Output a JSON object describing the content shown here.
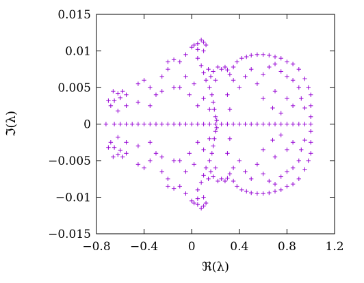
{
  "chart_data": {
    "type": "scatter",
    "marker": "+",
    "color": "#9400d3",
    "xlabel": "ℜ(λ)",
    "ylabel": "ℑ(λ)",
    "xlim": [
      -0.8,
      1.2
    ],
    "ylim": [
      -0.015,
      0.015
    ],
    "xticks": [
      -0.8,
      -0.4,
      0,
      0.4,
      0.8,
      1.2
    ],
    "xtick_labels": [
      "−0.8",
      "−0.4",
      "0",
      "0.4",
      "0.8",
      "1.2"
    ],
    "yticks": [
      -0.015,
      -0.01,
      -0.005,
      0,
      0.005,
      0.01,
      0.015
    ],
    "ytick_labels": [
      "−0.015",
      "−0.01",
      "−0.005",
      "0",
      "0.005",
      "0.01",
      "0.015"
    ],
    "grid": false,
    "legend": "none",
    "series": [
      {
        "values": [
          [
            -0.72,
            0.0
          ],
          [
            -0.65,
            0.0
          ],
          [
            -0.6,
            0.0
          ],
          [
            -0.55,
            0.0
          ],
          [
            -0.5,
            0.0
          ],
          [
            -0.45,
            0.0
          ],
          [
            -0.4,
            0.0
          ],
          [
            -0.35,
            0.0
          ],
          [
            -0.3,
            0.0
          ],
          [
            -0.25,
            0.0
          ],
          [
            -0.2,
            0.0
          ],
          [
            -0.15,
            0.0
          ],
          [
            -0.1,
            0.0
          ],
          [
            -0.05,
            0.0
          ],
          [
            0.0,
            0.0
          ],
          [
            0.05,
            0.0
          ],
          [
            0.1,
            0.0
          ],
          [
            0.15,
            0.0
          ],
          [
            0.2,
            0.0
          ],
          [
            0.25,
            0.0
          ],
          [
            0.3,
            0.0
          ],
          [
            0.35,
            0.0
          ],
          [
            0.4,
            0.0
          ],
          [
            0.45,
            0.0
          ],
          [
            0.5,
            0.0
          ],
          [
            0.55,
            0.0
          ],
          [
            0.6,
            0.0
          ],
          [
            0.65,
            0.0
          ],
          [
            0.7,
            0.0
          ],
          [
            0.75,
            0.0
          ],
          [
            0.8,
            0.0
          ],
          [
            0.85,
            0.0
          ],
          [
            0.9,
            0.0
          ],
          [
            0.95,
            0.0
          ],
          [
            1.0,
            0.0
          ],
          [
            -0.66,
            0.0045
          ],
          [
            -0.62,
            0.0042
          ],
          [
            -0.6,
            0.0036
          ],
          [
            -0.65,
            0.0032
          ],
          [
            -0.7,
            0.0032
          ],
          [
            -0.58,
            0.0045
          ],
          [
            -0.55,
            0.004
          ],
          [
            -0.68,
            0.0025
          ],
          [
            -0.62,
            0.0018
          ],
          [
            -0.55,
            0.0025
          ],
          [
            -0.66,
            -0.0045
          ],
          [
            -0.62,
            -0.0042
          ],
          [
            -0.6,
            -0.0036
          ],
          [
            -0.65,
            -0.0032
          ],
          [
            -0.7,
            -0.0032
          ],
          [
            -0.58,
            -0.0045
          ],
          [
            -0.55,
            -0.004
          ],
          [
            -0.68,
            -0.0025
          ],
          [
            -0.62,
            -0.0018
          ],
          [
            -0.55,
            -0.0025
          ],
          [
            -0.45,
            0.0055
          ],
          [
            -0.4,
            0.006
          ],
          [
            -0.35,
            0.005
          ],
          [
            -0.45,
            0.003
          ],
          [
            -0.35,
            0.0025
          ],
          [
            -0.3,
            0.004
          ],
          [
            -0.25,
            0.0065
          ],
          [
            -0.2,
            0.0075
          ],
          [
            -0.25,
            0.0045
          ],
          [
            -0.15,
            0.005
          ],
          [
            -0.45,
            -0.0055
          ],
          [
            -0.4,
            -0.006
          ],
          [
            -0.35,
            -0.005
          ],
          [
            -0.45,
            -0.003
          ],
          [
            -0.35,
            -0.0025
          ],
          [
            -0.3,
            -0.004
          ],
          [
            -0.25,
            -0.0065
          ],
          [
            -0.2,
            -0.0075
          ],
          [
            -0.25,
            -0.0045
          ],
          [
            -0.15,
            -0.005
          ],
          [
            -0.2,
            0.0085
          ],
          [
            -0.15,
            0.0088
          ],
          [
            -0.1,
            0.0085
          ],
          [
            -0.05,
            0.0095
          ],
          [
            0.0,
            0.0105
          ],
          [
            0.02,
            0.0108
          ],
          [
            0.05,
            0.011
          ],
          [
            0.08,
            0.0115
          ],
          [
            0.1,
            0.0112
          ],
          [
            0.12,
            0.0108
          ],
          [
            0.1,
            0.01
          ],
          [
            0.05,
            0.0102
          ],
          [
            -0.2,
            -0.0085
          ],
          [
            -0.15,
            -0.0088
          ],
          [
            -0.1,
            -0.0085
          ],
          [
            -0.05,
            -0.0095
          ],
          [
            0.0,
            -0.0105
          ],
          [
            0.02,
            -0.0108
          ],
          [
            0.05,
            -0.011
          ],
          [
            0.08,
            -0.0115
          ],
          [
            0.1,
            -0.0112
          ],
          [
            0.12,
            -0.0108
          ],
          [
            0.1,
            -0.01
          ],
          [
            0.05,
            -0.0102
          ],
          [
            0.05,
            0.009
          ],
          [
            0.08,
            0.008
          ],
          [
            0.1,
            0.007
          ],
          [
            0.12,
            0.006
          ],
          [
            0.15,
            0.005
          ],
          [
            0.17,
            0.004
          ],
          [
            0.18,
            0.003
          ],
          [
            0.19,
            0.002
          ],
          [
            0.2,
            0.001
          ],
          [
            0.21,
            0.0005
          ],
          [
            0.14,
            0.0075
          ],
          [
            0.16,
            0.0065
          ],
          [
            0.18,
            0.0072
          ],
          [
            0.2,
            0.006
          ],
          [
            0.22,
            0.0078
          ],
          [
            0.25,
            0.0075
          ],
          [
            0.28,
            0.0078
          ],
          [
            0.3,
            0.0074
          ],
          [
            0.05,
            -0.009
          ],
          [
            0.08,
            -0.008
          ],
          [
            0.1,
            -0.007
          ],
          [
            0.12,
            -0.006
          ],
          [
            0.15,
            -0.005
          ],
          [
            0.17,
            -0.004
          ],
          [
            0.18,
            -0.003
          ],
          [
            0.19,
            -0.002
          ],
          [
            0.2,
            -0.001
          ],
          [
            0.21,
            -0.0005
          ],
          [
            0.14,
            -0.0075
          ],
          [
            0.16,
            -0.0065
          ],
          [
            0.18,
            -0.0072
          ],
          [
            0.2,
            -0.006
          ],
          [
            0.22,
            -0.0078
          ],
          [
            0.25,
            -0.0075
          ],
          [
            0.28,
            -0.0078
          ],
          [
            0.3,
            -0.0074
          ],
          [
            -0.1,
            0.005
          ],
          [
            -0.05,
            0.0065
          ],
          [
            -0.02,
            0.004
          ],
          [
            0.02,
            0.0055
          ],
          [
            0.05,
            0.0025
          ],
          [
            0.1,
            0.0035
          ],
          [
            0.15,
            0.002
          ],
          [
            -0.1,
            -0.005
          ],
          [
            -0.05,
            -0.0065
          ],
          [
            -0.02,
            -0.004
          ],
          [
            0.02,
            -0.0055
          ],
          [
            0.05,
            -0.0025
          ],
          [
            0.1,
            -0.0035
          ],
          [
            0.15,
            -0.002
          ],
          [
            0.32,
            0.0068
          ],
          [
            0.35,
            0.0078
          ],
          [
            0.38,
            0.0085
          ],
          [
            0.42,
            0.009
          ],
          [
            0.46,
            0.0092
          ],
          [
            0.5,
            0.0094
          ],
          [
            0.55,
            0.0095
          ],
          [
            0.6,
            0.0095
          ],
          [
            0.65,
            0.0094
          ],
          [
            0.7,
            0.0092
          ],
          [
            0.75,
            0.009
          ],
          [
            0.8,
            0.0085
          ],
          [
            0.85,
            0.0082
          ],
          [
            0.9,
            0.0075
          ],
          [
            0.95,
            0.0062
          ],
          [
            0.98,
            0.005
          ],
          [
            1.0,
            0.004
          ],
          [
            1.0,
            0.0025
          ],
          [
            1.0,
            0.001
          ],
          [
            0.32,
            -0.0068
          ],
          [
            0.35,
            -0.0078
          ],
          [
            0.38,
            -0.0085
          ],
          [
            0.42,
            -0.009
          ],
          [
            0.46,
            -0.0092
          ],
          [
            0.5,
            -0.0094
          ],
          [
            0.55,
            -0.0095
          ],
          [
            0.6,
            -0.0095
          ],
          [
            0.65,
            -0.0094
          ],
          [
            0.7,
            -0.0092
          ],
          [
            0.75,
            -0.009
          ],
          [
            0.8,
            -0.0085
          ],
          [
            0.85,
            -0.0082
          ],
          [
            0.9,
            -0.0075
          ],
          [
            0.95,
            -0.0062
          ],
          [
            0.98,
            -0.005
          ],
          [
            1.0,
            -0.004
          ],
          [
            1.0,
            -0.0025
          ],
          [
            1.0,
            -0.001
          ],
          [
            0.3,
            0.004
          ],
          [
            0.32,
            0.002
          ],
          [
            0.35,
            0.006
          ],
          [
            0.4,
            0.005
          ],
          [
            0.45,
            0.0065
          ],
          [
            0.5,
            0.0075
          ],
          [
            0.55,
            0.0055
          ],
          [
            0.6,
            0.0068
          ],
          [
            0.65,
            0.0078
          ],
          [
            0.7,
            0.0082
          ],
          [
            0.75,
            0.0072
          ],
          [
            0.8,
            0.0065
          ],
          [
            0.85,
            0.006
          ],
          [
            0.9,
            0.005
          ],
          [
            0.92,
            0.0035
          ],
          [
            0.95,
            0.0022
          ],
          [
            0.6,
            0.0035
          ],
          [
            0.7,
            0.0045
          ],
          [
            0.8,
            0.0035
          ],
          [
            0.68,
            0.0022
          ],
          [
            0.75,
            0.0015
          ],
          [
            0.85,
            0.0025
          ],
          [
            0.3,
            -0.004
          ],
          [
            0.32,
            -0.002
          ],
          [
            0.35,
            -0.006
          ],
          [
            0.4,
            -0.005
          ],
          [
            0.45,
            -0.0065
          ],
          [
            0.5,
            -0.0075
          ],
          [
            0.55,
            -0.0055
          ],
          [
            0.6,
            -0.0068
          ],
          [
            0.65,
            -0.0078
          ],
          [
            0.7,
            -0.0082
          ],
          [
            0.75,
            -0.0072
          ],
          [
            0.8,
            -0.0065
          ],
          [
            0.85,
            -0.006
          ],
          [
            0.9,
            -0.005
          ],
          [
            0.92,
            -0.0035
          ],
          [
            0.95,
            -0.0022
          ],
          [
            0.6,
            -0.0035
          ],
          [
            0.7,
            -0.0045
          ],
          [
            0.8,
            -0.0035
          ],
          [
            0.68,
            -0.0022
          ],
          [
            0.75,
            -0.0015
          ],
          [
            0.85,
            -0.0025
          ]
        ]
      }
    ]
  }
}
